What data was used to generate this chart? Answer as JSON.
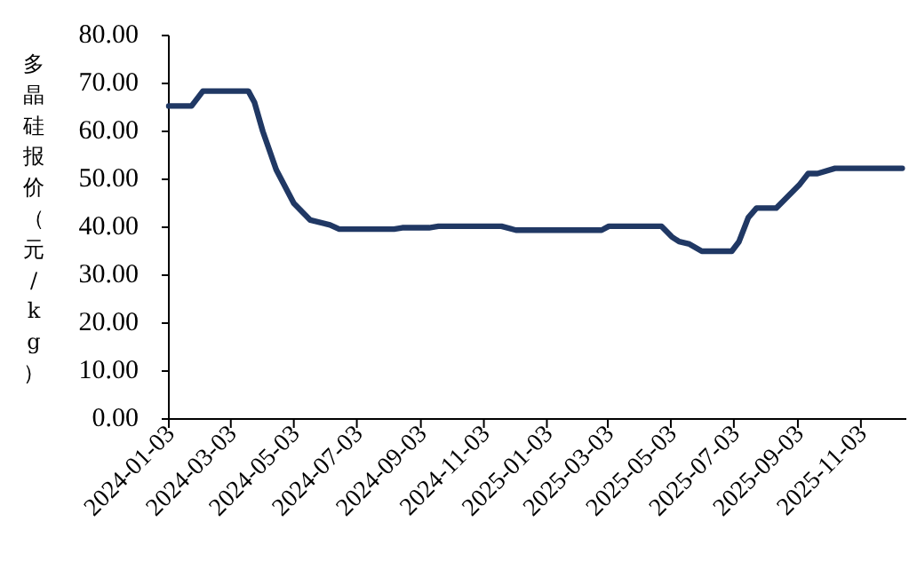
{
  "chart_data": {
    "type": "line",
    "ylabel": "多晶硅报价（元/kg）",
    "x": [
      "2024-01-03",
      "2024-01-25",
      "2024-02-05",
      "2024-03-20",
      "2024-03-26",
      "2024-04-03",
      "2024-04-16",
      "2024-05-03",
      "2024-05-19",
      "2024-06-07",
      "2024-06-16",
      "2024-08-08",
      "2024-08-16",
      "2024-09-11",
      "2024-09-20",
      "2024-11-20",
      "2024-12-04",
      "2025-02-25",
      "2025-03-04",
      "2025-04-24",
      "2025-05-04",
      "2025-05-11",
      "2025-05-21",
      "2025-06-02",
      "2025-07-01",
      "2025-07-08",
      "2025-07-17",
      "2025-07-25",
      "2025-08-13",
      "2025-09-05",
      "2025-09-13",
      "2025-09-22",
      "2025-10-09",
      "2025-12-13"
    ],
    "series": [
      {
        "color": "#203864",
        "values": [
          65.3,
          65.3,
          68.4,
          68.4,
          66,
          60,
          52,
          45,
          41.5,
          40.5,
          39.6,
          39.6,
          39.9,
          39.9,
          40.2,
          40.2,
          39.4,
          39.4,
          40.2,
          40.2,
          38,
          37,
          36.5,
          35,
          35,
          37,
          42,
          44,
          44,
          49,
          51.2,
          51.2,
          52.3,
          52.3
        ]
      }
    ],
    "xlim": [
      "2024-01-03",
      "2025-12-17"
    ],
    "xticks": [
      "2024-01-03",
      "2024-03-03",
      "2024-05-03",
      "2024-07-03",
      "2024-09-03",
      "2024-11-03",
      "2025-01-03",
      "2025-03-03",
      "2025-05-03",
      "2025-07-03",
      "2025-09-03",
      "2025-11-03"
    ],
    "ylim": [
      0,
      80
    ],
    "yticks": [
      {
        "value": 0,
        "label": "0.00"
      },
      {
        "value": 10,
        "label": "10.00"
      },
      {
        "value": 20,
        "label": "20.00"
      },
      {
        "value": 30,
        "label": "30.00"
      },
      {
        "value": 40,
        "label": "40.00"
      },
      {
        "value": 50,
        "label": "50.00"
      },
      {
        "value": 60,
        "label": "60.00"
      },
      {
        "value": 70,
        "label": "70.00"
      },
      {
        "value": 80,
        "label": "80.00"
      }
    ],
    "grid": false,
    "marker": "none",
    "line_style": "solid"
  }
}
